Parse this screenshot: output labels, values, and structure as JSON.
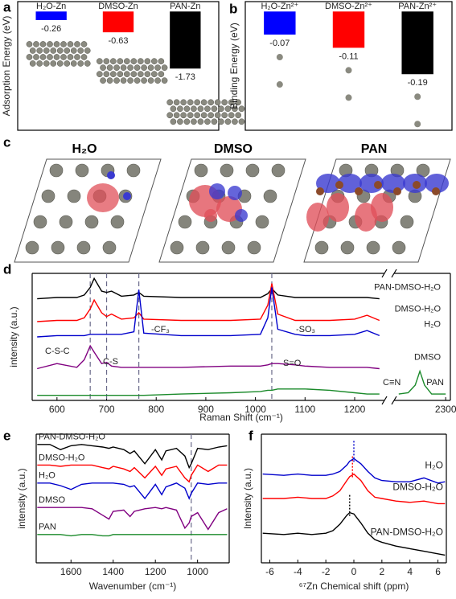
{
  "chart_data": [
    {
      "type": "bar",
      "panel": "a",
      "ylabel": "Adsorption Energy (eV)",
      "categories": [
        "H₂O-Zn",
        "DMSO-Zn",
        "PAN-Zn"
      ],
      "values": [
        -0.26,
        -0.63,
        -1.73
      ],
      "colors": [
        "#0000ff",
        "#ff0000",
        "#000000"
      ],
      "ylim": [
        -3.6,
        0.3
      ]
    },
    {
      "type": "bar",
      "panel": "b",
      "ylabel": "Binding Energy (eV)",
      "categories": [
        "H₂O-Zn²⁺",
        "DMSO-Zn²⁺",
        "PAN-Zn²⁺"
      ],
      "values": [
        -0.07,
        -0.11,
        -0.19
      ],
      "colors": [
        "#0000ff",
        "#ff0000",
        "#000000"
      ],
      "ylim": [
        -0.36,
        0.03
      ]
    },
    {
      "type": "line",
      "panel": "d",
      "xlabel": "Raman  Shift (cm⁻¹)",
      "ylabel": "intensity (a.u.)",
      "x": [
        560,
        600,
        640,
        655,
        667,
        675,
        690,
        700,
        710,
        730,
        755,
        765,
        775,
        850,
        950,
        1010,
        1025,
        1033,
        1045,
        1080,
        1100,
        1150,
        1200,
        1225,
        1250
      ],
      "xlim": [
        550,
        1260
      ],
      "xticks": [
        600,
        700,
        800,
        900,
        1000,
        1100,
        1200
      ],
      "x_right": [
        2200,
        2220,
        2235,
        2245,
        2255,
        2270,
        2300
      ],
      "xlim_right": [
        2190,
        2310
      ],
      "xticks_right": [
        2300
      ],
      "ylim": [
        0,
        10
      ],
      "reference_lines": [
        667,
        700,
        765,
        1033
      ],
      "reference_line_style": "dashed",
      "label_side": "right",
      "annotations": [
        "C-S-C",
        "C-S",
        "-CF₃",
        "-SO₃",
        "S=O",
        "C≡N"
      ],
      "series": [
        {
          "name": "PAN-DMSO-H₂O",
          "color": "#000000",
          "values": [
            8.0,
            8.1,
            8.1,
            8.3,
            8.9,
            9.6,
            8.6,
            8.5,
            8.6,
            8.2,
            8.3,
            8.5,
            8.2,
            8.1,
            8.1,
            8.1,
            8.4,
            8.8,
            8.3,
            8.1,
            8.1,
            8.1,
            8.1,
            8.1,
            8.0
          ]
        },
        {
          "name": "DMSO-H₂O",
          "color": "#ff0000",
          "values": [
            6.2,
            6.3,
            6.3,
            6.5,
            7.2,
            7.9,
            6.9,
            6.6,
            6.8,
            6.4,
            6.5,
            6.9,
            6.4,
            6.3,
            6.3,
            6.4,
            7.5,
            9.2,
            6.8,
            6.3,
            6.3,
            6.3,
            6.4,
            6.7,
            6.3
          ]
        },
        {
          "name": "H₂O",
          "color": "#0000cc",
          "values": [
            5.0,
            5.1,
            5.1,
            5.1,
            5.2,
            5.2,
            5.2,
            5.2,
            5.2,
            5.2,
            5.4,
            8.7,
            5.3,
            5.1,
            5.1,
            5.2,
            6.5,
            8.9,
            5.6,
            5.2,
            5.1,
            5.1,
            5.2,
            5.5,
            5.1
          ]
        },
        {
          "name": "DMSO",
          "color": "#800080",
          "values": [
            2.5,
            2.9,
            2.6,
            3.2,
            4.3,
            3.8,
            2.9,
            3.0,
            2.7,
            2.6,
            2.6,
            2.6,
            2.6,
            2.6,
            2.7,
            2.7,
            2.8,
            2.9,
            2.9,
            2.8,
            2.7,
            2.6,
            2.6,
            2.6,
            2.5
          ]
        },
        {
          "name": "PAN",
          "color": "#1a8a2a",
          "values": [
            0.4,
            0.4,
            0.4,
            0.4,
            0.4,
            0.4,
            0.4,
            0.4,
            0.4,
            0.4,
            0.4,
            0.4,
            0.4,
            0.5,
            0.6,
            0.7,
            0.8,
            0.8,
            0.9,
            0.9,
            0.9,
            0.8,
            0.6,
            0.5,
            0.5
          ],
          "values_right": [
            0.5,
            0.6,
            1.2,
            2.3,
            1.2,
            0.5,
            0.5
          ]
        }
      ]
    },
    {
      "type": "line",
      "panel": "e",
      "xlabel": "Wavenumber (cm⁻¹)",
      "ylabel": "intensity (a.u.)",
      "x": [
        1760,
        1700,
        1650,
        1600,
        1550,
        1500,
        1450,
        1420,
        1400,
        1350,
        1320,
        1300,
        1250,
        1200,
        1170,
        1150,
        1100,
        1060,
        1040,
        1030,
        1000,
        950,
        900,
        860
      ],
      "xlim": [
        1765,
        850
      ],
      "xticks": [
        1600,
        1400,
        1200,
        1000
      ],
      "ylim": [
        0,
        10
      ],
      "reference_lines": [
        1030
      ],
      "reference_line_style": "dashed",
      "label_side": "left",
      "series": [
        {
          "name": "PAN-DMSO-H₂O",
          "color": "#000000",
          "values": [
            9.2,
            9.2,
            8.8,
            9.1,
            9.2,
            9.1,
            9.0,
            8.9,
            9.0,
            8.8,
            8.5,
            8.7,
            7.7,
            8.8,
            8.0,
            8.7,
            8.9,
            8.3,
            7.4,
            7.7,
            8.9,
            8.8,
            9.0,
            9.1
          ]
        },
        {
          "name": "DMSO-H₂O",
          "color": "#ff0000",
          "values": [
            7.6,
            7.6,
            7.5,
            7.6,
            7.6,
            7.6,
            7.4,
            7.3,
            7.5,
            7.3,
            7.1,
            7.4,
            6.6,
            7.5,
            6.8,
            7.3,
            7.5,
            6.6,
            6.3,
            6.8,
            7.6,
            7.1,
            7.6,
            7.6
          ]
        },
        {
          "name": "H₂O",
          "color": "#0000cc",
          "values": [
            6.2,
            6.2,
            6.0,
            5.7,
            6.1,
            6.2,
            6.2,
            6.2,
            6.2,
            6.1,
            5.9,
            6.0,
            5.0,
            6.1,
            5.3,
            5.9,
            6.2,
            5.8,
            5.0,
            5.4,
            6.2,
            6.1,
            6.2,
            6.2
          ]
        },
        {
          "name": "DMSO",
          "color": "#800080",
          "values": [
            4.3,
            4.3,
            4.3,
            4.3,
            4.3,
            4.2,
            3.7,
            3.4,
            4.0,
            4.1,
            3.6,
            4.0,
            4.2,
            4.3,
            4.2,
            4.3,
            4.1,
            2.7,
            3.1,
            3.6,
            3.9,
            2.6,
            3.9,
            4.2
          ]
        },
        {
          "name": "PAN",
          "color": "#1a8a2a",
          "values": [
            2.2,
            2.2,
            2.2,
            2.1,
            2.2,
            2.2,
            2.1,
            2.1,
            2.2,
            2.2,
            2.2,
            2.2,
            2.2,
            2.2,
            2.2,
            2.2,
            2.2,
            2.2,
            2.2,
            2.2,
            2.2,
            2.2,
            2.2,
            2.2
          ]
        }
      ]
    },
    {
      "type": "line",
      "panel": "f",
      "xlabel": "⁶⁷Zn Chemical shift (ppm)",
      "ylabel": "Intensity (a.u.)",
      "x": [
        -6.5,
        -5,
        -4,
        -3,
        -2,
        -1.5,
        -1,
        -0.5,
        -0.3,
        0,
        0.5,
        1,
        1.5,
        2,
        3,
        4,
        5,
        6,
        6.5
      ],
      "xlim": [
        -6.6,
        6.6
      ],
      "xticks": [
        -6,
        -4,
        -2,
        0,
        2,
        4,
        6
      ],
      "ylim": [
        0,
        10
      ],
      "reference_lines": [
        0,
        -0.1,
        -0.3
      ],
      "reference_line_style": "dotted",
      "label_side": "right",
      "series": [
        {
          "name": "H₂O",
          "color": "#0000cc",
          "values": [
            6.9,
            6.8,
            6.9,
            6.8,
            6.8,
            6.9,
            7.1,
            7.6,
            7.9,
            8.1,
            7.7,
            7.1,
            6.6,
            6.4,
            6.3,
            6.3,
            6.6,
            6.2,
            6.3
          ]
        },
        {
          "name": "DMSO-H₂O",
          "color": "#ff0000",
          "values": [
            5.0,
            5.0,
            5.1,
            5.0,
            5.0,
            5.2,
            5.6,
            6.4,
            6.7,
            6.9,
            6.4,
            5.6,
            5.1,
            5.0,
            4.8,
            4.7,
            4.8,
            4.6,
            4.6
          ]
        },
        {
          "name": "PAN-DMSO-H₂O",
          "color": "#000000",
          "values": [
            2.3,
            2.2,
            2.3,
            2.2,
            2.3,
            2.5,
            3.0,
            3.7,
            3.9,
            3.8,
            3.1,
            2.3,
            1.8,
            1.6,
            1.3,
            1.1,
            0.9,
            0.7,
            0.6
          ]
        }
      ]
    }
  ],
  "panel_c": {
    "panel": "c",
    "titles": [
      "H₂O",
      "DMSO",
      "PAN"
    ]
  }
}
